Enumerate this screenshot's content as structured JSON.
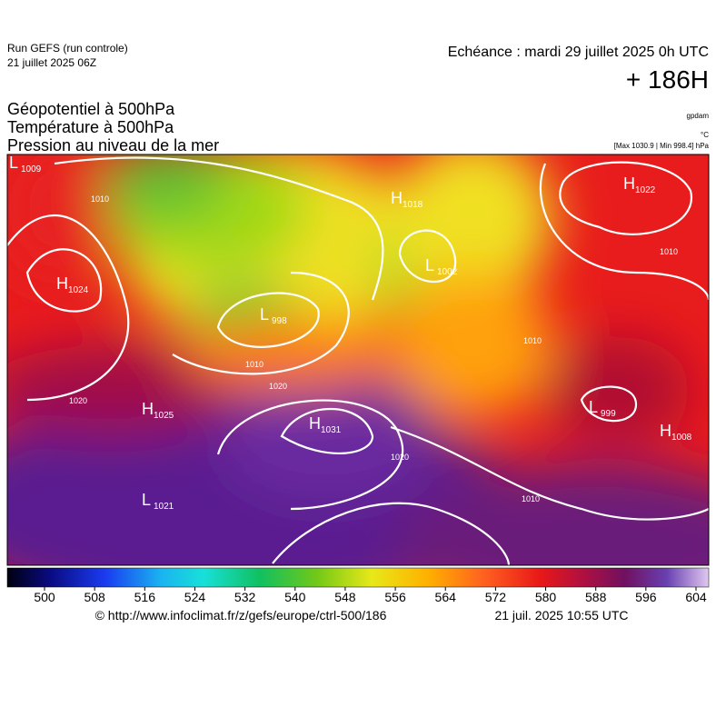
{
  "header": {
    "run": "Run GEFS (run controle)",
    "run_date": "21 juillet 2025 06Z",
    "valid": "Echéance : mardi 29 juillet 2025 0h UTC",
    "lead": "+ 186H",
    "titles": [
      "Géopotentiel à 500hPa",
      "Température à 500hPa",
      "Pression au niveau de la mer"
    ],
    "unit_geopotential": "gpdam",
    "unit_temperature": "°C",
    "pressure_range": "[Max 1030.9 | Min 998.4] hPa"
  },
  "map": {
    "centers": [
      {
        "label": "L",
        "value": "1009"
      },
      {
        "label": "H",
        "value": "1024"
      },
      {
        "label": "L",
        "value": "998"
      },
      {
        "label": "H",
        "value": "1018"
      },
      {
        "label": "L",
        "value": "1002"
      },
      {
        "label": "H",
        "value": "1022"
      },
      {
        "label": "H",
        "value": "1025"
      },
      {
        "label": "H",
        "value": "1031"
      },
      {
        "label": "L",
        "value": "1021"
      },
      {
        "label": "L",
        "value": "999"
      },
      {
        "label": "H",
        "value": "1008"
      }
    ],
    "isobar_labels": [
      "1010",
      "1020",
      "1010",
      "1020",
      "1010",
      "1010",
      "1020",
      "1010"
    ]
  },
  "colorbar": {
    "ticks": [
      500,
      508,
      516,
      524,
      532,
      540,
      548,
      556,
      564,
      572,
      580,
      588,
      596,
      604
    ]
  },
  "footer": {
    "source": "© http://www.infoclimat.fr/z/gefs/europe/ctrl-500/186",
    "generated": "21 juil. 2025 10:55 UTC"
  }
}
